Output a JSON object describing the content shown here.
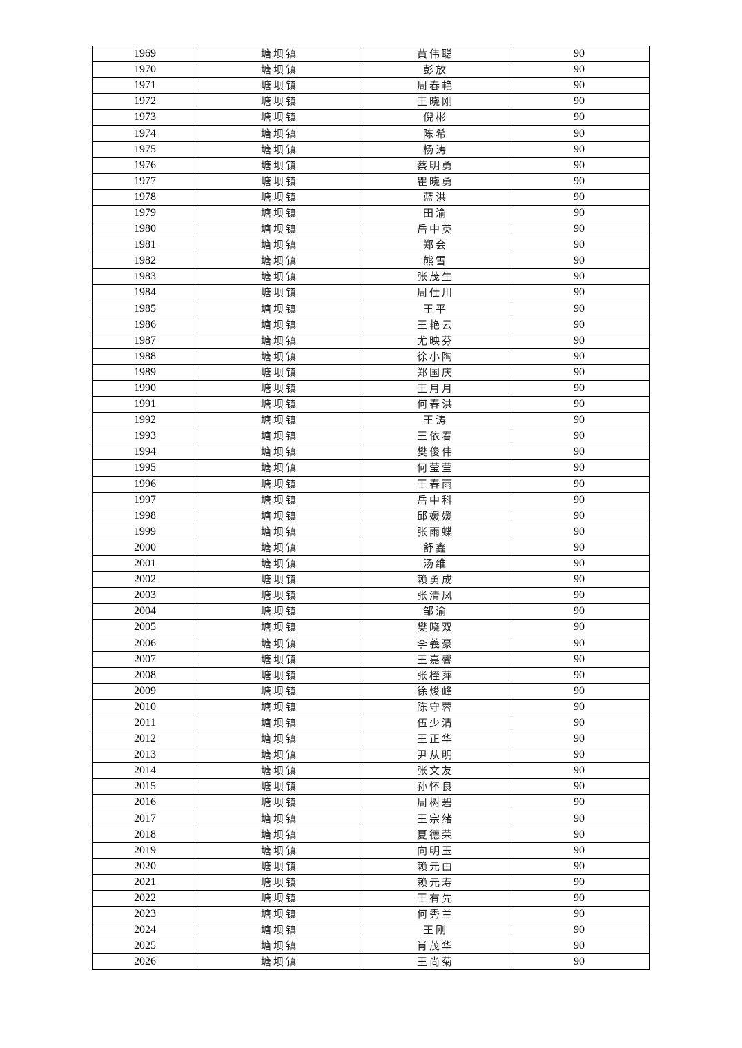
{
  "table": {
    "rows": [
      [
        "1969",
        "塘坝镇",
        "黄伟聪",
        "90"
      ],
      [
        "1970",
        "塘坝镇",
        "彭放",
        "90"
      ],
      [
        "1971",
        "塘坝镇",
        "周春艳",
        "90"
      ],
      [
        "1972",
        "塘坝镇",
        "王晓刚",
        "90"
      ],
      [
        "1973",
        "塘坝镇",
        "倪彬",
        "90"
      ],
      [
        "1974",
        "塘坝镇",
        "陈希",
        "90"
      ],
      [
        "1975",
        "塘坝镇",
        "杨涛",
        "90"
      ],
      [
        "1976",
        "塘坝镇",
        "蔡明勇",
        "90"
      ],
      [
        "1977",
        "塘坝镇",
        "瞿晓勇",
        "90"
      ],
      [
        "1978",
        "塘坝镇",
        "蓝洪",
        "90"
      ],
      [
        "1979",
        "塘坝镇",
        "田渝",
        "90"
      ],
      [
        "1980",
        "塘坝镇",
        "岳中英",
        "90"
      ],
      [
        "1981",
        "塘坝镇",
        "郑会",
        "90"
      ],
      [
        "1982",
        "塘坝镇",
        "熊雪",
        "90"
      ],
      [
        "1983",
        "塘坝镇",
        "张茂生",
        "90"
      ],
      [
        "1984",
        "塘坝镇",
        "周仕川",
        "90"
      ],
      [
        "1985",
        "塘坝镇",
        "王平",
        "90"
      ],
      [
        "1986",
        "塘坝镇",
        "王艳云",
        "90"
      ],
      [
        "1987",
        "塘坝镇",
        "尤映芬",
        "90"
      ],
      [
        "1988",
        "塘坝镇",
        "徐小陶",
        "90"
      ],
      [
        "1989",
        "塘坝镇",
        "郑国庆",
        "90"
      ],
      [
        "1990",
        "塘坝镇",
        "王月月",
        "90"
      ],
      [
        "1991",
        "塘坝镇",
        "何春洪",
        "90"
      ],
      [
        "1992",
        "塘坝镇",
        "王涛",
        "90"
      ],
      [
        "1993",
        "塘坝镇",
        "王依春",
        "90"
      ],
      [
        "1994",
        "塘坝镇",
        "樊俊伟",
        "90"
      ],
      [
        "1995",
        "塘坝镇",
        "何莹莹",
        "90"
      ],
      [
        "1996",
        "塘坝镇",
        "王春雨",
        "90"
      ],
      [
        "1997",
        "塘坝镇",
        "岳中科",
        "90"
      ],
      [
        "1998",
        "塘坝镇",
        "邱媛媛",
        "90"
      ],
      [
        "1999",
        "塘坝镇",
        "张雨蝶",
        "90"
      ],
      [
        "2000",
        "塘坝镇",
        "舒鑫",
        "90"
      ],
      [
        "2001",
        "塘坝镇",
        "汤维",
        "90"
      ],
      [
        "2002",
        "塘坝镇",
        "赖勇成",
        "90"
      ],
      [
        "2003",
        "塘坝镇",
        "张清凤",
        "90"
      ],
      [
        "2004",
        "塘坝镇",
        "邹渝",
        "90"
      ],
      [
        "2005",
        "塘坝镇",
        "樊晓双",
        "90"
      ],
      [
        "2006",
        "塘坝镇",
        "李義豪",
        "90"
      ],
      [
        "2007",
        "塘坝镇",
        "王嘉馨",
        "90"
      ],
      [
        "2008",
        "塘坝镇",
        "张桎萍",
        "90"
      ],
      [
        "2009",
        "塘坝镇",
        "徐焌峰",
        "90"
      ],
      [
        "2010",
        "塘坝镇",
        "陈守蓉",
        "90"
      ],
      [
        "2011",
        "塘坝镇",
        "伍少清",
        "90"
      ],
      [
        "2012",
        "塘坝镇",
        "王正华",
        "90"
      ],
      [
        "2013",
        "塘坝镇",
        "尹从明",
        "90"
      ],
      [
        "2014",
        "塘坝镇",
        "张文友",
        "90"
      ],
      [
        "2015",
        "塘坝镇",
        "孙怀良",
        "90"
      ],
      [
        "2016",
        "塘坝镇",
        "周树碧",
        "90"
      ],
      [
        "2017",
        "塘坝镇",
        "王宗绪",
        "90"
      ],
      [
        "2018",
        "塘坝镇",
        "夏德荣",
        "90"
      ],
      [
        "2019",
        "塘坝镇",
        "向明玉",
        "90"
      ],
      [
        "2020",
        "塘坝镇",
        "赖元由",
        "90"
      ],
      [
        "2021",
        "塘坝镇",
        "赖元寿",
        "90"
      ],
      [
        "2022",
        "塘坝镇",
        "王有先",
        "90"
      ],
      [
        "2023",
        "塘坝镇",
        "何秀兰",
        "90"
      ],
      [
        "2024",
        "塘坝镇",
        "王刚",
        "90"
      ],
      [
        "2025",
        "塘坝镇",
        "肖茂华",
        "90"
      ],
      [
        "2026",
        "塘坝镇",
        "王尚菊",
        "90"
      ]
    ]
  }
}
